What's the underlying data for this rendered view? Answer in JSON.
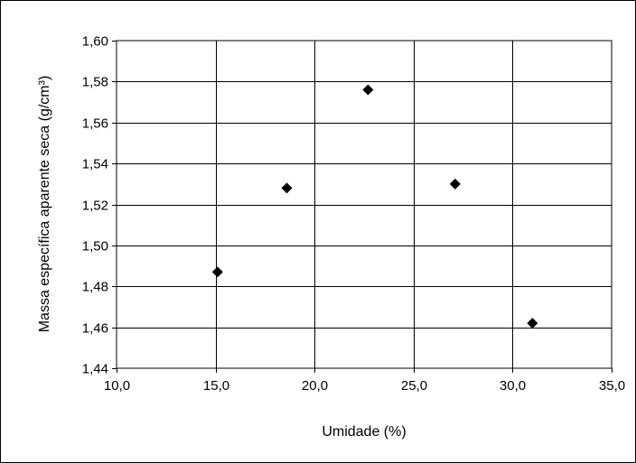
{
  "chart_data": {
    "type": "scatter",
    "title": "",
    "xlabel": "Umidade (%)",
    "ylabel": "Massa específica aparente seca (g/cm³)",
    "xlim": [
      10.0,
      35.0
    ],
    "ylim": [
      1.44,
      1.6
    ],
    "x_ticks": [
      10.0,
      15.0,
      20.0,
      25.0,
      30.0,
      35.0
    ],
    "y_ticks": [
      1.44,
      1.46,
      1.48,
      1.5,
      1.52,
      1.54,
      1.56,
      1.58,
      1.6
    ],
    "x_tick_labels": [
      "10,0",
      "15,0",
      "20,0",
      "25,0",
      "30,0",
      "35,0"
    ],
    "y_tick_labels": [
      "1,44",
      "1,46",
      "1,48",
      "1,50",
      "1,52",
      "1,54",
      "1,56",
      "1,58",
      "1,60"
    ],
    "grid": true,
    "legend": "none",
    "marker": "diamond",
    "marker_color": "#000000",
    "series": [
      {
        "x": [
          15.1,
          18.6,
          22.7,
          27.1,
          31.0
        ],
        "y": [
          1.487,
          1.528,
          1.576,
          1.53,
          1.462
        ]
      }
    ]
  }
}
